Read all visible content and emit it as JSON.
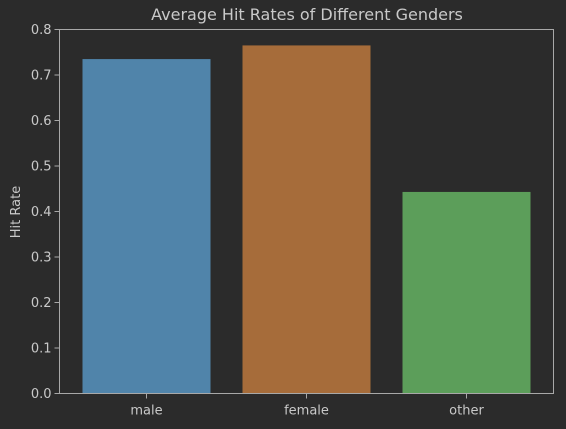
{
  "chart_data": {
    "type": "bar",
    "title": "Average Hit Rates of Different Genders",
    "xlabel": "",
    "ylabel": "Hit Rate",
    "categories": [
      "male",
      "female",
      "other"
    ],
    "values": [
      0.735,
      0.765,
      0.443
    ],
    "colors": [
      "#5084aa",
      "#a66c3a",
      "#5c9e5a"
    ],
    "ylim": [
      0,
      0.8
    ],
    "yticks": [
      "0.0",
      "0.1",
      "0.2",
      "0.3",
      "0.4",
      "0.5",
      "0.6",
      "0.7",
      "0.8"
    ],
    "grid": false,
    "background": "#2b2b2b",
    "axis_color": "#a8a8a8",
    "text_color": "#c9c9c9"
  }
}
